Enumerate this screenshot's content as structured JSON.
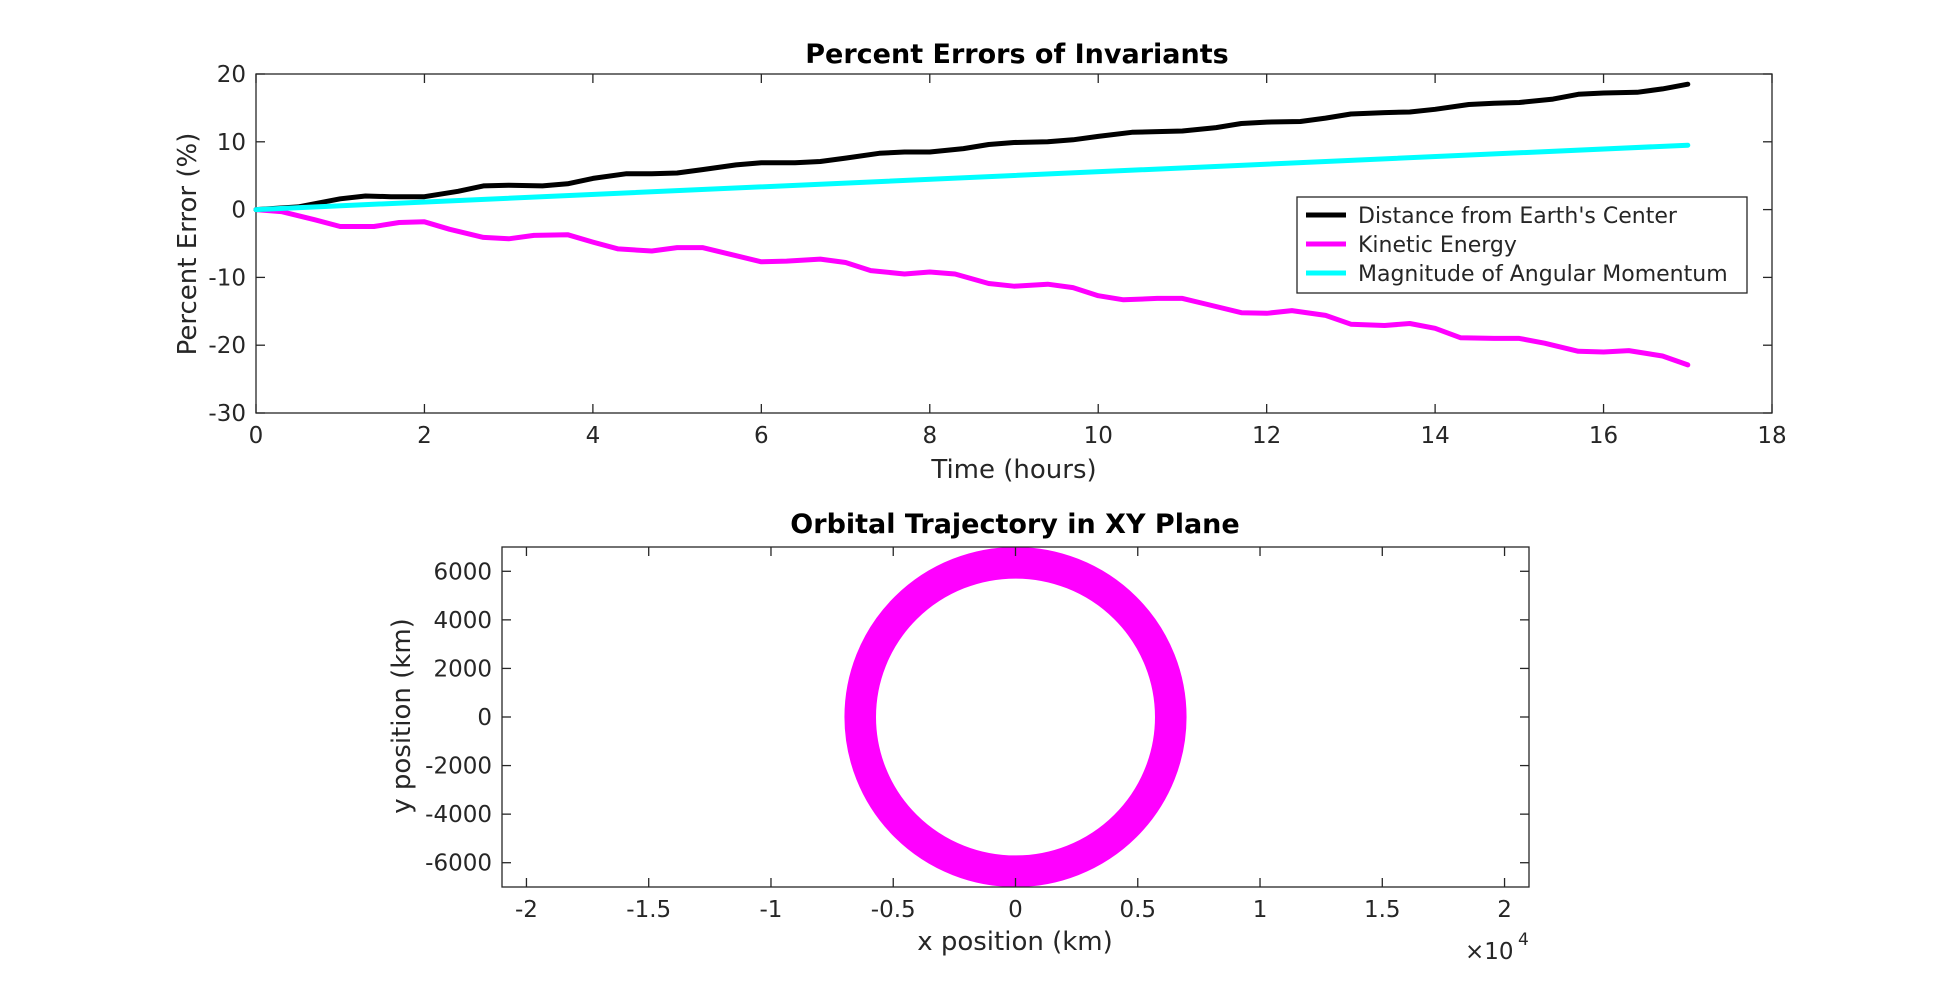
{
  "chart_data": [
    {
      "type": "line",
      "title": "Percent Errors of Invariants",
      "xlabel": "Time (hours)",
      "ylabel": "Percent Error (%)",
      "xlim": [
        0,
        18
      ],
      "ylim": [
        -30,
        20
      ],
      "xticks": [
        0,
        2,
        4,
        6,
        8,
        10,
        12,
        14,
        16,
        18
      ],
      "yticks": [
        -30,
        -20,
        -10,
        0,
        10,
        20
      ],
      "grid": false,
      "legend_position": "right",
      "series": [
        {
          "name": "Distance from Earth's Center",
          "color": "#000000",
          "x": [
            0,
            0.5,
            1,
            1.3,
            1.6,
            2,
            2.4,
            2.7,
            3,
            3.4,
            3.7,
            4,
            4.4,
            4.7,
            5,
            5.3,
            5.7,
            6,
            6.4,
            6.7,
            7,
            7.4,
            7.7,
            8,
            8.4,
            8.7,
            9,
            9.4,
            9.7,
            10,
            10.4,
            10.7,
            11,
            11.4,
            11.7,
            12,
            12.4,
            12.7,
            13,
            13.4,
            13.7,
            14,
            14.4,
            14.7,
            15,
            15.4,
            15.7,
            16,
            16.4,
            16.7,
            17
          ],
          "values": [
            0,
            0.4,
            1.6,
            2.0,
            1.9,
            1.9,
            2.7,
            3.5,
            3.6,
            3.5,
            3.8,
            4.6,
            5.3,
            5.3,
            5.4,
            5.9,
            6.6,
            6.9,
            6.9,
            7.1,
            7.6,
            8.3,
            8.5,
            8.5,
            9.0,
            9.6,
            9.9,
            10.0,
            10.3,
            10.8,
            11.4,
            11.5,
            11.6,
            12.1,
            12.7,
            12.9,
            13.0,
            13.5,
            14.1,
            14.3,
            14.4,
            14.8,
            15.5,
            15.7,
            15.8,
            16.3,
            17.0,
            17.2,
            17.3,
            17.8,
            18.5
          ]
        },
        {
          "name": "Kinetic Energy",
          "color": "#ff00ff",
          "x": [
            0,
            0.3,
            0.7,
            1,
            1.4,
            1.7,
            2,
            2.3,
            2.7,
            3,
            3.3,
            3.7,
            4,
            4.3,
            4.7,
            5,
            5.3,
            5.7,
            6,
            6.3,
            6.7,
            7,
            7.3,
            7.7,
            8,
            8.3,
            8.7,
            9,
            9.4,
            9.7,
            10,
            10.3,
            10.7,
            11,
            11.3,
            11.7,
            12,
            12.3,
            12.7,
            13,
            13.4,
            13.7,
            14,
            14.3,
            14.7,
            15,
            15.3,
            15.7,
            16,
            16.3,
            16.7,
            17
          ],
          "values": [
            0,
            -0.3,
            -1.5,
            -2.5,
            -2.5,
            -1.9,
            -1.8,
            -2.9,
            -4.1,
            -4.3,
            -3.8,
            -3.7,
            -4.8,
            -5.8,
            -6.1,
            -5.6,
            -5.6,
            -6.8,
            -7.7,
            -7.6,
            -7.3,
            -7.8,
            -9.0,
            -9.5,
            -9.2,
            -9.5,
            -10.9,
            -11.3,
            -11.0,
            -11.5,
            -12.7,
            -13.3,
            -13.1,
            -13.1,
            -14.0,
            -15.2,
            -15.3,
            -14.9,
            -15.6,
            -16.9,
            -17.1,
            -16.8,
            -17.5,
            -18.9,
            -19.0,
            -19.0,
            -19.7,
            -20.9,
            -21.0,
            -20.8,
            -21.6,
            -22.9
          ]
        },
        {
          "name": "Magnitude of Angular Momentum",
          "color": "#00ffff",
          "x": [
            0,
            17
          ],
          "values": [
            0,
            9.5
          ]
        }
      ]
    },
    {
      "type": "line",
      "title": "Orbital Trajectory in XY Plane",
      "xlabel": "x position (km)",
      "ylabel": "y position (km)",
      "x_multiplier_label": "×10",
      "x_multiplier_exponent": "4",
      "xlim": [
        -21000,
        21000
      ],
      "ylim": [
        -7000,
        7000
      ],
      "xticks": [
        -2,
        -1.5,
        -1,
        -0.5,
        0,
        0.5,
        1,
        1.5,
        2
      ],
      "yticks": [
        -6000,
        -4000,
        -2000,
        0,
        2000,
        4000,
        6000
      ],
      "grid": false,
      "series": [
        {
          "color": "#ff00ff",
          "inner_radius_km": 5700,
          "outer_radius_km": 7000,
          "center": [
            0,
            0
          ]
        }
      ]
    }
  ]
}
